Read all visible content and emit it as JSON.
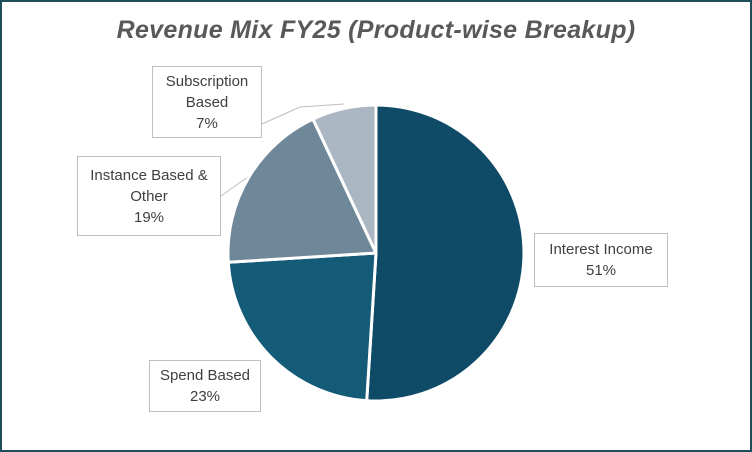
{
  "chart_data": {
    "type": "pie",
    "title": "Revenue Mix FY25 (Product-wise Breakup)",
    "slices": [
      {
        "label": "Interest Income",
        "value": 51,
        "percent_label": "51%",
        "color": "#0f4a66"
      },
      {
        "label": "Spend Based",
        "value": 23,
        "percent_label": "23%",
        "color": "#145b78"
      },
      {
        "label": "Instance Based & Other",
        "value": 19,
        "percent_label": "19%",
        "color": "#6e889a"
      },
      {
        "label": "Subscription Based",
        "value": 7,
        "percent_label": "7%",
        "color": "#aab7c2"
      }
    ],
    "legend": "none",
    "data_labels": "callouts"
  },
  "colors": {
    "title": "#595959",
    "border": "#1f4e5a",
    "slice_edge": "#ffffff",
    "leader_line": "#bfbfbf"
  }
}
